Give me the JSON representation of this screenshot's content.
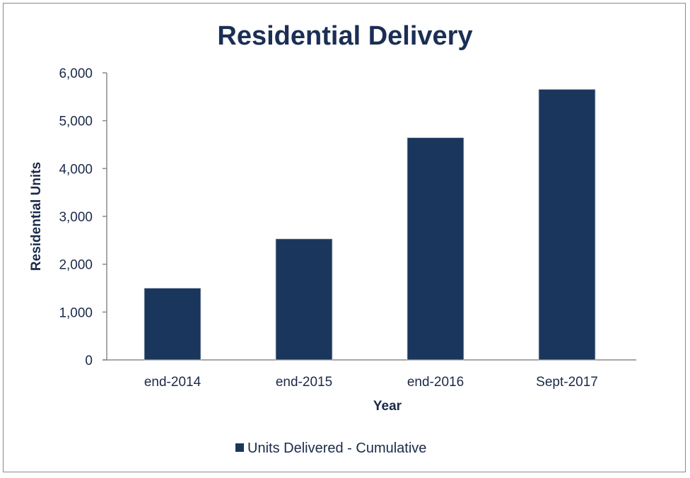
{
  "chart_data": {
    "type": "bar",
    "title": "Residential Delivery",
    "xlabel": "Year",
    "ylabel": "Residential Units",
    "categories": [
      "end-2014",
      "end-2015",
      "end-2016",
      "Sept-2017"
    ],
    "series": [
      {
        "name": "Units Delivered - Cumulative",
        "values": [
          1500,
          2530,
          4645,
          5655
        ]
      }
    ],
    "ylim": [
      0,
      6000
    ],
    "yticks": [
      0,
      1000,
      2000,
      3000,
      4000,
      5000,
      6000
    ],
    "ytick_labels": [
      "0",
      "1,000",
      "2,000",
      "3,000",
      "4,000",
      "5,000",
      "6,000"
    ],
    "grid": false,
    "legend_position": "bottom",
    "bar_color": "#1a365d"
  }
}
